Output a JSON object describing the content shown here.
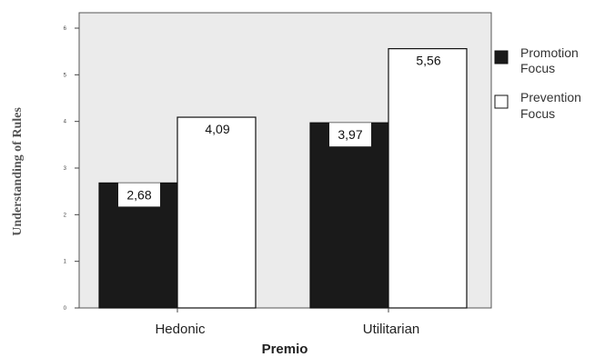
{
  "chart_data": {
    "type": "bar",
    "categories": [
      "Hedonic",
      "Utilitarian"
    ],
    "series": [
      {
        "name": "Promotion Focus",
        "values": [
          2.68,
          3.97
        ],
        "labels": [
          "2,68",
          "3,97"
        ],
        "color": "#1a1a1a"
      },
      {
        "name": "Prevention Focus",
        "values": [
          4.09,
          5.56
        ],
        "labels": [
          "4,09",
          "5,56"
        ],
        "color": "#ffffff"
      }
    ],
    "xlabel": "Premio",
    "ylabel": "Understanding of Rules",
    "ylim": [
      0,
      6
    ],
    "yticks": [
      "0",
      "1",
      "2",
      "3",
      "4",
      "5",
      "6"
    ],
    "plot_background": "#ebebeb",
    "legend_position": "right",
    "legend": [
      {
        "line1": "Promotion",
        "line2": "Focus"
      },
      {
        "line1": "Prevention",
        "line2": "Focus"
      }
    ]
  }
}
